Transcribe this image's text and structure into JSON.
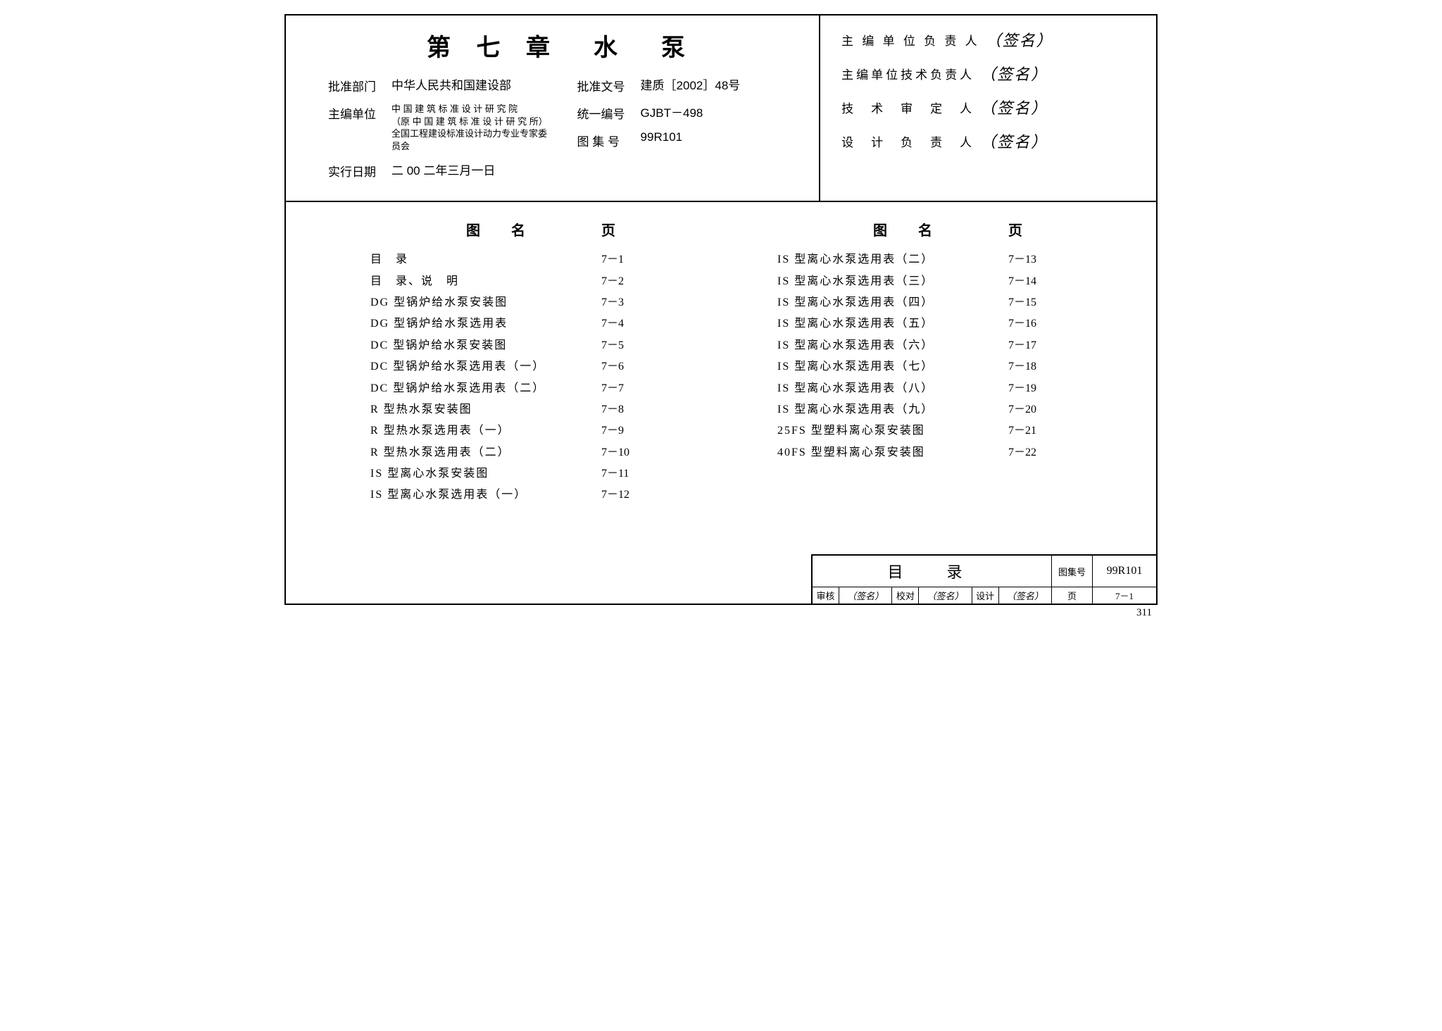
{
  "header": {
    "chapter_title": "第 七 章　水　泵",
    "left_rows": [
      {
        "label": "批准部门",
        "value": "中华人民共和国建设部"
      },
      {
        "label": "主编单位",
        "value": "中 国 建 筑 标 准 设 计 研 究 院\n（原 中 国 建 筑 标 准 设 计 研 究 所）\n全国工程建设标准设计动力专业专家委员会",
        "small": true
      },
      {
        "label": "实行日期",
        "value": "二 00 二年三月一日"
      }
    ],
    "right_rows": [
      {
        "label": "批准文号",
        "value": "建质［2002］48号"
      },
      {
        "label": "统一编号",
        "value": "GJBT－498"
      },
      {
        "label": "图 集 号",
        "value": "99R101"
      }
    ],
    "signatures": [
      {
        "label": "主 编 单 位 负 责 人",
        "value": "（签名）"
      },
      {
        "label": "主编单位技术负责人",
        "value": "（签名）"
      },
      {
        "label": "技　术　审　定　人",
        "value": "（签名）"
      },
      {
        "label": "设　计　负　责　人",
        "value": "（签名）"
      }
    ]
  },
  "toc": {
    "col_headers": {
      "name": "图　名",
      "page": "页"
    },
    "left": [
      {
        "name": "目　录",
        "page": "7－1"
      },
      {
        "name": "目　录、说　明",
        "page": "7－2"
      },
      {
        "name": "DG 型锅炉给水泵安装图",
        "page": "7－3"
      },
      {
        "name": "DG 型锅炉给水泵选用表",
        "page": "7－4"
      },
      {
        "name": "DC 型锅炉给水泵安装图",
        "page": "7－5"
      },
      {
        "name": "DC 型锅炉给水泵选用表（一）",
        "page": "7－6"
      },
      {
        "name": "DC 型锅炉给水泵选用表（二）",
        "page": "7－7"
      },
      {
        "name": "R 型热水泵安装图",
        "page": "7－8"
      },
      {
        "name": "R 型热水泵选用表（一）",
        "page": "7－9"
      },
      {
        "name": "R 型热水泵选用表（二）",
        "page": "7－10"
      },
      {
        "name": "IS 型离心水泵安装图",
        "page": "7－11"
      },
      {
        "name": "IS 型离心水泵选用表（一）",
        "page": "7－12"
      }
    ],
    "right": [
      {
        "name": "IS 型离心水泵选用表（二）",
        "page": "7－13"
      },
      {
        "name": "IS 型离心水泵选用表（三）",
        "page": "7－14"
      },
      {
        "name": "IS 型离心水泵选用表（四）",
        "page": "7－15"
      },
      {
        "name": "IS 型离心水泵选用表（五）",
        "page": "7－16"
      },
      {
        "name": "IS 型离心水泵选用表（六）",
        "page": "7－17"
      },
      {
        "name": "IS 型离心水泵选用表（七）",
        "page": "7－18"
      },
      {
        "name": "IS 型离心水泵选用表（八）",
        "page": "7－19"
      },
      {
        "name": "IS 型离心水泵选用表（九）",
        "page": "7－20"
      },
      {
        "name": "25FS 型塑料离心泵安装图",
        "page": "7－21"
      },
      {
        "name": "40FS 型塑料离心泵安装图",
        "page": "7－22"
      }
    ]
  },
  "title_block": {
    "title": "目　录",
    "set_no_label": "图集号",
    "set_no": "99R101",
    "row2": [
      {
        "l": "审核",
        "v": "（签名）"
      },
      {
        "l": "校对",
        "v": "（签名）"
      },
      {
        "l": "设计",
        "v": "（签名）"
      }
    ],
    "page_label": "页",
    "page_val": "7－1"
  },
  "outer_page": "311"
}
